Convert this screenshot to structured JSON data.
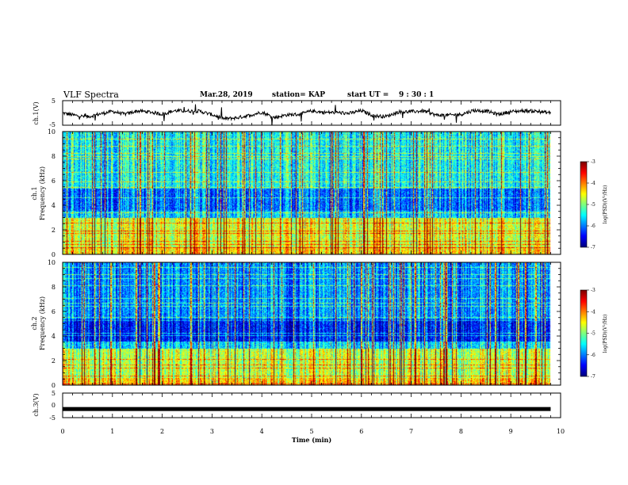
{
  "header": {
    "title": "VLF Spectra",
    "date": "Mar.28, 2019",
    "station": "station= KAP",
    "start_label": "start  UT =",
    "start_time": "9 : 30 : 1"
  },
  "chart_data": [
    {
      "type": "line",
      "name": "ch1-waveform",
      "ylabel": "ch.1(V)",
      "ylim": [
        -5,
        5
      ],
      "yticks": [
        "5",
        "-5"
      ],
      "x": [
        0.0,
        0.25,
        0.5,
        0.75,
        1.0,
        1.25,
        1.5,
        1.75,
        2.0,
        2.25,
        2.5,
        2.75,
        3.0,
        3.25,
        3.5,
        3.75,
        4.0,
        4.25,
        4.5,
        4.75,
        5.0,
        5.25,
        5.5,
        5.75,
        6.0,
        6.25,
        6.5,
        6.75,
        7.0,
        7.25,
        7.5,
        7.75,
        8.0,
        8.25,
        8.5,
        8.75,
        9.0,
        9.25,
        9.5,
        9.75
      ],
      "values": [
        0.0,
        -1.0,
        -1.6,
        -0.4,
        0.6,
        -0.5,
        0.8,
        0.4,
        -0.5,
        0.9,
        0.8,
        0.7,
        -0.7,
        -2.4,
        -2.0,
        -1.0,
        0.3,
        -1.9,
        -0.8,
        -0.6,
        0.8,
        0.2,
        0.2,
        -0.2,
        0.9,
        -1.2,
        -1.4,
        0.4,
        0.5,
        0.8,
        -0.9,
        -0.9,
        -0.6,
        1.0,
        0.8,
        -0.6,
        0.5,
        0.9,
        0.7,
        0.1
      ],
      "xlim": [
        0,
        10
      ]
    },
    {
      "type": "heatmap",
      "name": "ch1-spectrogram",
      "ylabel": "ch.1",
      "ylabel2": "Frequency (kHz)",
      "ylim": [
        0,
        10
      ],
      "xlim": [
        0,
        10
      ],
      "yticks": [
        "0",
        "2",
        "4",
        "6",
        "8",
        "10"
      ],
      "colorbar": {
        "label": "log(PSD)(V²/Hz)",
        "ticks": [
          "-3",
          "-4",
          "-5",
          "-6",
          "-7"
        ],
        "range": [
          -7,
          -3
        ]
      }
    },
    {
      "type": "heatmap",
      "name": "ch2-spectrogram",
      "ylabel": "ch.2",
      "ylabel2": "Frequency (kHz)",
      "ylim": [
        0,
        10
      ],
      "xlim": [
        0,
        10
      ],
      "yticks": [
        "0",
        "2",
        "4",
        "6",
        "8",
        "10"
      ],
      "colorbar": {
        "label": "log(PSD)(V²/Hz)",
        "ticks": [
          "-3",
          "-4",
          "-5",
          "-6",
          "-7"
        ],
        "range": [
          -7,
          -3
        ]
      }
    },
    {
      "type": "line",
      "name": "ch3-waveform",
      "ylabel": "ch.3(V)",
      "ylim": [
        -5,
        5
      ],
      "yticks": [
        "5",
        "0",
        "-5"
      ],
      "x": [
        0.0,
        9.8
      ],
      "values": [
        -1.5,
        -1.5
      ],
      "xlim": [
        0,
        10
      ],
      "xlabel": "Time  (min)",
      "xticks": [
        "0",
        "1",
        "2",
        "3",
        "4",
        "5",
        "6",
        "7",
        "8",
        "9",
        "10"
      ]
    }
  ]
}
